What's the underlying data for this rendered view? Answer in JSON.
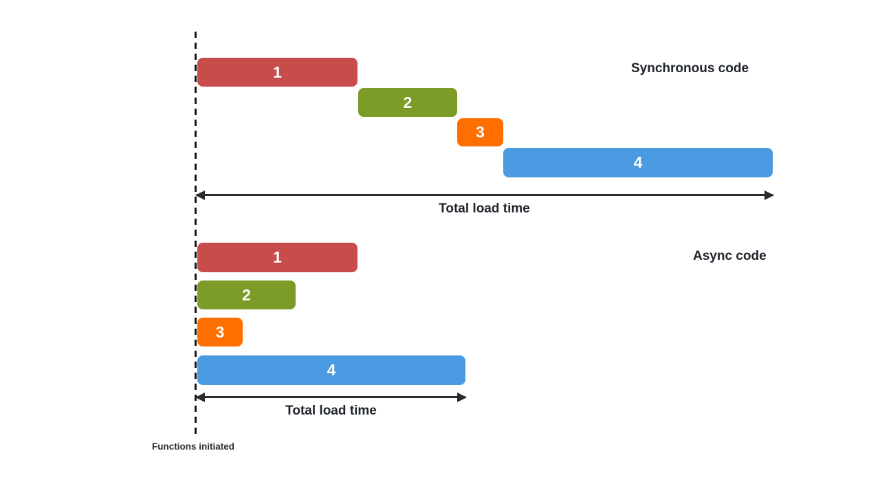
{
  "diagram": {
    "sync": {
      "title": "Synchronous code",
      "arrow_label": "Total load time",
      "bars": [
        {
          "label": "1",
          "color": "task1"
        },
        {
          "label": "2",
          "color": "task2"
        },
        {
          "label": "3",
          "color": "task3"
        },
        {
          "label": "4",
          "color": "task4"
        }
      ]
    },
    "async": {
      "title": "Async code",
      "arrow_label": "Total load time",
      "bars": [
        {
          "label": "1",
          "color": "task1"
        },
        {
          "label": "2",
          "color": "task2"
        },
        {
          "label": "3",
          "color": "task3"
        },
        {
          "label": "4",
          "color": "task4"
        }
      ]
    },
    "footnote": "Functions initiated"
  },
  "colors": {
    "task1": "#C94C4C",
    "task2": "#7C9B27",
    "task3": "#FF6F00",
    "task4": "#4A9BE1",
    "line": "#2B2B2B",
    "text": "#20242C",
    "background": "#FFFFFF"
  },
  "chart_data": {
    "type": "bar",
    "subtype": "gantt-timeline-comparison",
    "unit": "relative time units",
    "series": [
      {
        "name": "Synchronous code",
        "tasks": [
          {
            "task": "1",
            "start": 0,
            "duration": 233
          },
          {
            "task": "2",
            "start": 234,
            "duration": 144
          },
          {
            "task": "3",
            "start": 378,
            "duration": 67
          },
          {
            "task": "4",
            "start": 445,
            "duration": 392
          }
        ],
        "total_load_time": 839,
        "total_label": "Total load time"
      },
      {
        "name": "Async code",
        "tasks": [
          {
            "task": "1",
            "start": 0,
            "duration": 233
          },
          {
            "task": "2",
            "start": 0,
            "duration": 143
          },
          {
            "task": "3",
            "start": 0,
            "duration": 66
          },
          {
            "task": "4",
            "start": 0,
            "duration": 390
          }
        ],
        "total_load_time": 391,
        "total_label": "Total load time"
      }
    ],
    "baseline_label": "Functions initiated",
    "legend_position": "none",
    "grid": false
  }
}
